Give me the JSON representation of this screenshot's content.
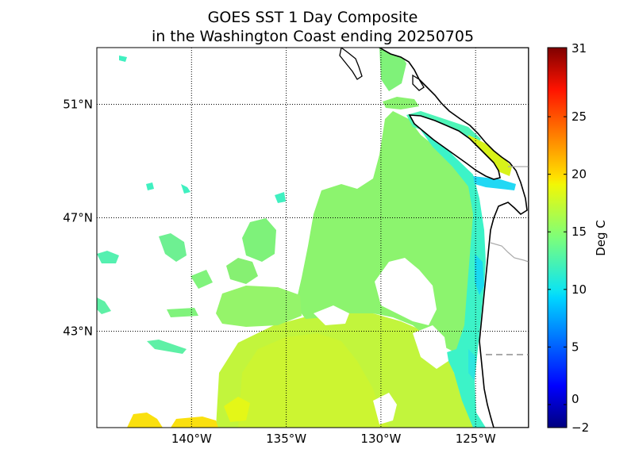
{
  "title_line1": "GOES SST 1 Day Composite",
  "title_line2": "in the Washington Coast ending 20250705",
  "map": {
    "lon_range": [
      -145,
      -122.2
    ],
    "lat_range": [
      39.6,
      53.0
    ],
    "lon_ticks": [
      {
        "value": -140,
        "label": "140°W"
      },
      {
        "value": -135,
        "label": "135°W"
      },
      {
        "value": -130,
        "label": "130°W"
      },
      {
        "value": -125,
        "label": "125°W"
      }
    ],
    "lat_ticks": [
      {
        "value": 51,
        "label": "51°N"
      },
      {
        "value": 47,
        "label": "47°N"
      },
      {
        "value": 43,
        "label": "43°N"
      }
    ],
    "grid": "dotted",
    "colors": {
      "coastline": "#000000",
      "border": "#aaaaaa",
      "missing": "#ffffff"
    }
  },
  "colorbar": {
    "label": "Deg C",
    "range": [
      -2,
      31
    ],
    "ticks": [
      {
        "value": 31,
        "label": "31"
      },
      {
        "value": 25,
        "label": "25"
      },
      {
        "value": 20,
        "label": "20"
      },
      {
        "value": 15,
        "label": "15"
      },
      {
        "value": 10,
        "label": "10"
      },
      {
        "value": 5,
        "label": "5"
      },
      {
        "value": 0,
        "label": "0"
      },
      {
        "value": -2,
        "label": "−2"
      }
    ],
    "colormap": "jet"
  }
}
